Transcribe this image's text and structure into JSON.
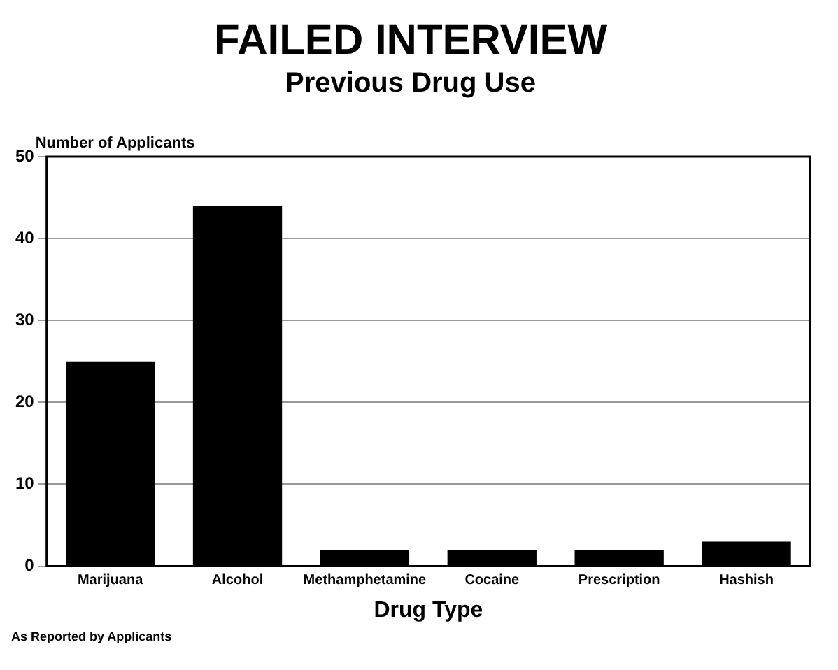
{
  "chart_data": {
    "type": "bar",
    "title": "FAILED INTERVIEW",
    "subtitle": "Previous Drug Use",
    "xlabel": "Drug Type",
    "ylabel": "Number of Applicants",
    "categories": [
      "Marijuana",
      "Alcohol",
      "Methamphetamine",
      "Cocaine",
      "Prescription",
      "Hashish"
    ],
    "values": [
      25,
      44,
      2,
      2,
      2,
      3
    ],
    "color": "#000000",
    "ylim": [
      0,
      50
    ],
    "yticks": [
      0,
      10,
      20,
      30,
      40,
      50
    ],
    "grid": "y",
    "annotations": [
      "As Reported by Applicants"
    ]
  }
}
